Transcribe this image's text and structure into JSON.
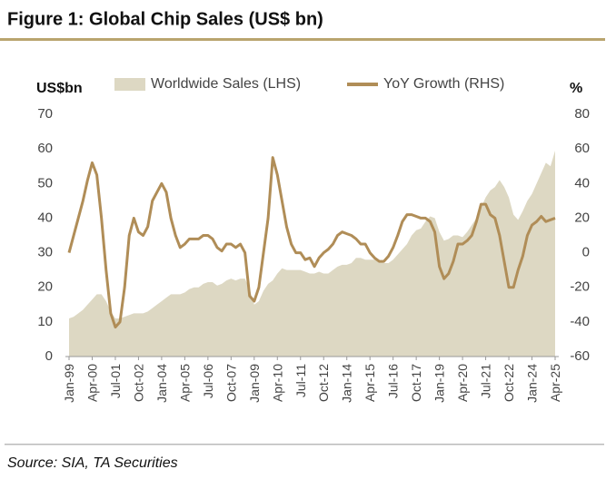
{
  "chart_data": {
    "type": "area_line",
    "title": "Figure 1: Global Chip Sales (US$ bn)",
    "source": "Source: SIA, TA Securities",
    "y_label": "US$bn",
    "y2_label": "%",
    "categories": [
      "Jan-99",
      null,
      null,
      null,
      null,
      "Apr-00",
      null,
      null,
      null,
      null,
      "Jul-01",
      null,
      null,
      null,
      null,
      "Oct-02",
      null,
      null,
      null,
      null,
      "Jan-04",
      null,
      null,
      null,
      null,
      "Apr-05",
      null,
      null,
      null,
      null,
      "Jul-06",
      null,
      null,
      null,
      null,
      "Oct-07",
      null,
      null,
      null,
      null,
      "Jan-09",
      null,
      null,
      null,
      null,
      "Apr-10",
      null,
      null,
      null,
      null,
      "Jul-11",
      null,
      null,
      null,
      null,
      "Oct-12",
      null,
      null,
      null,
      null,
      "Jan-14",
      null,
      null,
      null,
      null,
      "Apr-15",
      null,
      null,
      null,
      null,
      "Jul-16",
      null,
      null,
      null,
      null,
      "Oct-17",
      null,
      null,
      null,
      null,
      "Jan-19",
      null,
      null,
      null,
      null,
      "Apr-20",
      null,
      null,
      null,
      null,
      "Jul-21",
      null,
      null,
      null,
      null,
      "Oct-22",
      null,
      null,
      null,
      null,
      "Jan-24",
      null,
      null,
      null,
      null,
      "Apr-25"
    ],
    "series": [
      {
        "name": "Worldwide Sales (LHS)",
        "type": "area",
        "color": "#ddd8c3",
        "values": [
          11,
          11.5,
          12.5,
          13.5,
          15,
          16.5,
          18,
          18,
          16,
          13,
          11,
          11,
          11.5,
          12,
          12.5,
          12.5,
          12.5,
          13,
          14,
          15,
          16,
          17,
          18,
          18,
          18,
          18.5,
          19.5,
          20,
          20,
          21,
          21.5,
          21.5,
          20.5,
          21,
          22,
          22.5,
          22,
          22.5,
          22.5,
          19.5,
          15,
          16,
          19,
          21,
          22,
          24,
          25.5,
          25,
          25,
          25,
          25,
          24.5,
          24,
          24,
          24.5,
          24,
          24,
          25,
          26,
          26.5,
          26.5,
          27,
          28.5,
          28.5,
          28,
          28,
          28,
          27.5,
          27,
          27,
          28,
          29.5,
          31,
          32.5,
          35,
          36.5,
          37,
          39,
          40.5,
          40,
          36,
          33.5,
          34,
          35,
          35,
          34.5,
          36,
          38,
          40,
          43,
          46,
          48,
          49,
          51,
          49,
          46,
          41,
          39.5,
          42,
          45,
          47,
          50,
          53,
          56,
          55,
          59.5
        ]
      },
      {
        "name": "YoY Growth (RHS)",
        "type": "line",
        "axis": "y2",
        "color": "#b08d57",
        "values": [
          0,
          10,
          20,
          30,
          42,
          52,
          45,
          20,
          -10,
          -35,
          -43,
          -40,
          -20,
          10,
          20,
          12,
          10,
          15,
          30,
          35,
          40,
          35,
          20,
          10,
          3,
          5,
          8,
          8,
          8,
          10,
          10,
          8,
          3,
          1,
          5,
          5,
          3,
          5,
          0,
          -25,
          -28,
          -20,
          0,
          20,
          55,
          45,
          30,
          15,
          5,
          0,
          0,
          -4,
          -3,
          -8,
          -3,
          0,
          2,
          5,
          10,
          12,
          11,
          10,
          8,
          5,
          5,
          0,
          -3,
          -5,
          -5,
          -2,
          3,
          10,
          18,
          22,
          22,
          21,
          20,
          20,
          18,
          12,
          -8,
          -15,
          -12,
          -5,
          5,
          5,
          7,
          10,
          18,
          28,
          28,
          22,
          20,
          10,
          -5,
          -20,
          -20,
          -10,
          -2,
          10,
          16,
          18,
          21,
          18,
          19,
          20
        ]
      }
    ],
    "ylim": [
      0,
      70
    ],
    "yticks": [
      0,
      10,
      20,
      30,
      40,
      50,
      60,
      70
    ],
    "y2lim": [
      -60,
      80
    ],
    "y2ticks": [
      -60,
      -40,
      -20,
      0,
      20,
      40,
      60,
      80
    ]
  }
}
